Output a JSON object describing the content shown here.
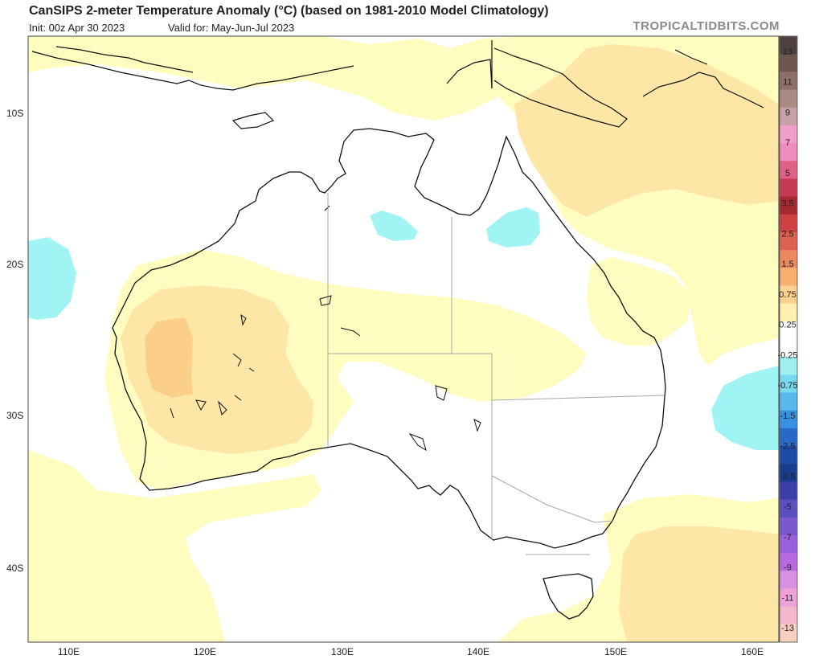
{
  "header": {
    "title": "CanSIPS 2-meter Temperature Anomaly (°C) (based on 1981-2010 Model Climatology)",
    "init": "Init: 00z Apr 30 2023",
    "valid": "Valid for: May-Jun-Jul 2023",
    "source": "TROPICALTIDBITS.COM"
  },
  "axes": {
    "lat_labels": [
      "10S",
      "20S",
      "30S",
      "40S"
    ],
    "lon_labels": [
      "110E",
      "120E",
      "130E",
      "140E",
      "150E",
      "160E"
    ]
  },
  "colorbar": {
    "labels": [
      "13",
      "11",
      "9",
      "7",
      "5",
      "3.5",
      "2.5",
      "1.5",
      "0.75",
      "0.25",
      "-0.25",
      "-0.75",
      "-1.5",
      "-2.5",
      "-3.5",
      "-5",
      "-7",
      "-9",
      "-11",
      "-13"
    ],
    "colors": [
      "#4f4040",
      "#6e5650",
      "#8d7068",
      "#ab8b85",
      "#c8a0a8",
      "#f0a0c8",
      "#ee8cbe",
      "#e06088",
      "#c83850",
      "#a82830",
      "#d04040",
      "#e06050",
      "#ee8860",
      "#f8b070",
      "#fcd090",
      "#fff0b0",
      "#ffffff",
      "#ffffff",
      "#a0f0f0",
      "#78d8ee",
      "#58b8ee",
      "#3890e0",
      "#2868c8",
      "#1c4ca8",
      "#183c90",
      "#3a3ea8",
      "#5a50c0",
      "#7a58d0",
      "#9a60dc",
      "#b868e0",
      "#d890e0",
      "#f0a0d8",
      "#f4b8cc",
      "#f8d0c0"
    ]
  },
  "map_colors": {
    "ocean": "#ffffff",
    "warm1": "#fffcc0",
    "warm2": "#fde6a6",
    "warm3": "#fbcf8a",
    "cool1": "#a0f4f4",
    "coast": "#111111",
    "border": "#a8a8a8"
  }
}
